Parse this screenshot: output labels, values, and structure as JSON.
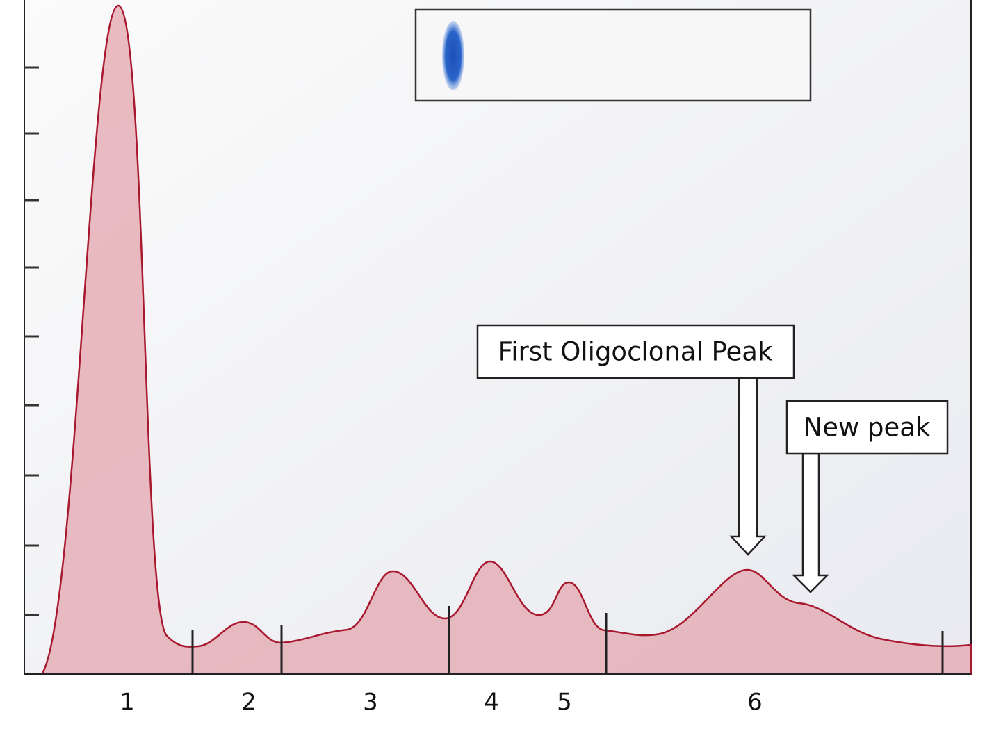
{
  "fraction_labels": [
    "1",
    "2",
    "3",
    "4",
    "5",
    "6"
  ],
  "annotations": {
    "first_peak": "First Oligoclonal Peak",
    "new_peak": "New peak"
  }
}
